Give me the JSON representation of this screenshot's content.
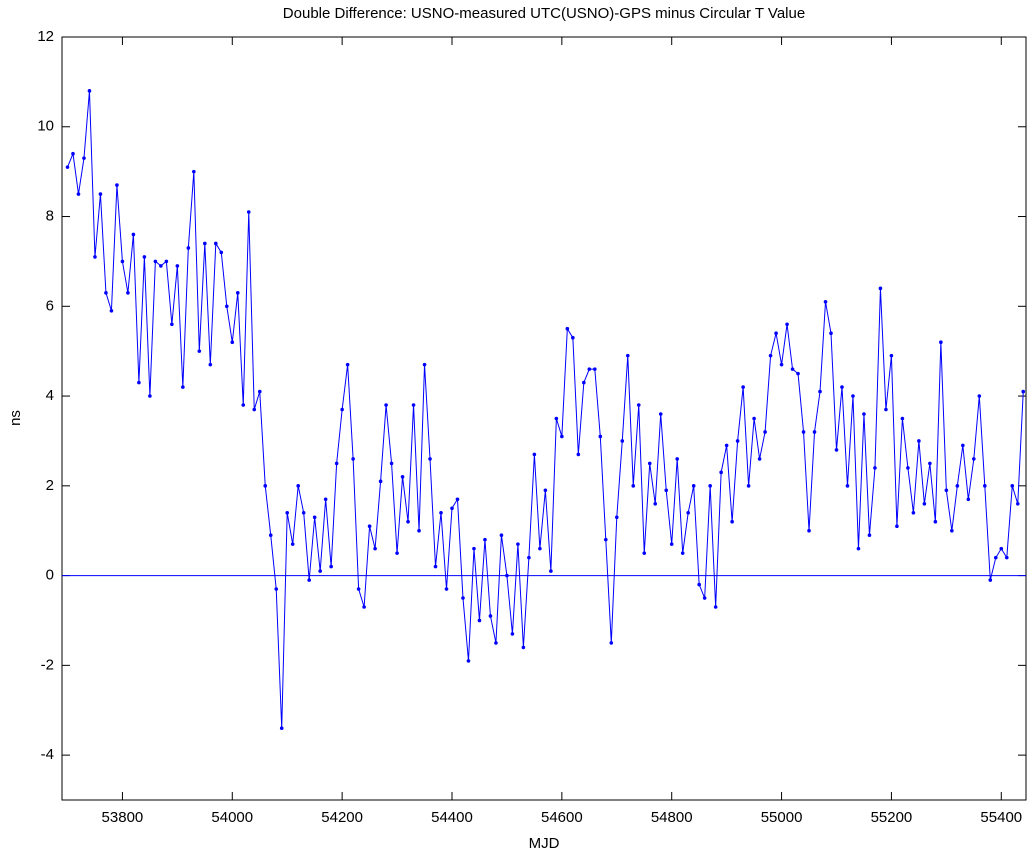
{
  "chart_data": {
    "type": "line",
    "title": "Double Difference: USNO-measured UTC(USNO)-GPS minus Circular T Value",
    "x_label": "MJD",
    "y_label": "ns",
    "x": [
      53700,
      53710,
      53720,
      53730,
      53740,
      53750,
      53760,
      53770,
      53780,
      53790,
      53800,
      53810,
      53820,
      53830,
      53840,
      53850,
      53860,
      53870,
      53880,
      53890,
      53900,
      53910,
      53920,
      53930,
      53940,
      53950,
      53960,
      53970,
      53980,
      53990,
      54000,
      54010,
      54020,
      54030,
      54040,
      54050,
      54060,
      54070,
      54080,
      54090,
      54100,
      54110,
      54120,
      54130,
      54140,
      54150,
      54160,
      54170,
      54180,
      54190,
      54200,
      54210,
      54220,
      54230,
      54240,
      54250,
      54260,
      54270,
      54280,
      54290,
      54300,
      54310,
      54320,
      54330,
      54340,
      54350,
      54360,
      54370,
      54380,
      54390,
      54400,
      54410,
      54420,
      54430,
      54440,
      54450,
      54460,
      54470,
      54480,
      54490,
      54500,
      54510,
      54520,
      54530,
      54540,
      54550,
      54560,
      54570,
      54580,
      54590,
      54600,
      54610,
      54620,
      54630,
      54640,
      54650,
      54660,
      54670,
      54680,
      54690,
      54700,
      54710,
      54720,
      54730,
      54740,
      54750,
      54760,
      54770,
      54780,
      54790,
      54800,
      54810,
      54820,
      54830,
      54840,
      54850,
      54860,
      54870,
      54880,
      54890,
      54900,
      54910,
      54920,
      54930,
      54940,
      54950,
      54960,
      54970,
      54980,
      54990,
      55000,
      55010,
      55020,
      55030,
      55040,
      55050,
      55060,
      55070,
      55080,
      55090,
      55100,
      55110,
      55120,
      55130,
      55140,
      55150,
      55160,
      55170,
      55180,
      55190,
      55200,
      55210,
      55220,
      55230,
      55240,
      55250,
      55260,
      55270,
      55280,
      55290,
      55300,
      55310,
      55320,
      55330,
      55340,
      55350,
      55360,
      55370,
      55380,
      55390,
      55400,
      55410,
      55420,
      55430,
      55440
    ],
    "series": [
      {
        "name": "USNO-measured UTC(USNO)-GPS minus Circular T",
        "color": "#0000ff",
        "values": [
          9.1,
          9.4,
          8.5,
          9.3,
          10.8,
          7.1,
          8.5,
          6.3,
          5.9,
          8.7,
          7.0,
          6.3,
          7.6,
          4.3,
          7.1,
          4.0,
          7.0,
          6.9,
          7.0,
          5.6,
          6.9,
          4.2,
          7.3,
          9.0,
          5.0,
          7.4,
          4.7,
          7.4,
          7.2,
          6.0,
          5.2,
          6.3,
          3.8,
          8.1,
          3.7,
          4.1,
          2.0,
          0.9,
          -0.3,
          -3.4,
          1.4,
          0.7,
          2.0,
          1.4,
          -0.1,
          1.3,
          0.1,
          1.7,
          0.2,
          2.5,
          3.7,
          4.7,
          2.6,
          -0.3,
          -0.7,
          1.1,
          0.6,
          2.1,
          3.8,
          2.5,
          0.5,
          2.2,
          1.2,
          3.8,
          1.0,
          4.7,
          2.6,
          0.2,
          1.4,
          -0.3,
          1.5,
          1.7,
          -0.5,
          -1.9,
          0.6,
          -1.0,
          0.8,
          -0.9,
          -1.5,
          0.9,
          0.0,
          -1.3,
          0.7,
          -1.6,
          0.4,
          2.7,
          0.6,
          1.9,
          0.1,
          3.5,
          3.1,
          5.5,
          5.3,
          2.7,
          4.3,
          4.6,
          4.6,
          3.1,
          0.8,
          -1.5,
          1.3,
          3.0,
          4.9,
          2.0,
          3.8,
          0.5,
          2.5,
          1.6,
          3.6,
          1.9,
          0.7,
          2.6,
          0.5,
          1.4,
          2.0,
          -0.2,
          -0.5,
          2.0,
          -0.7,
          2.3,
          2.9,
          1.2,
          3.0,
          4.2,
          2.0,
          3.5,
          2.6,
          3.2,
          4.9,
          5.4,
          4.7,
          5.6,
          4.6,
          4.5,
          3.2,
          1.0,
          3.2,
          4.1,
          6.1,
          5.4,
          2.8,
          4.2,
          2.0,
          4.0,
          0.6,
          3.6,
          0.9,
          2.4,
          6.4,
          3.7,
          4.9,
          1.1,
          3.5,
          2.4,
          1.4,
          3.0,
          1.6,
          2.5,
          1.2,
          5.2,
          1.9,
          1.0,
          2.0,
          2.9,
          1.7,
          2.6,
          4.0,
          2.0,
          -0.1,
          0.4,
          0.6,
          0.4,
          2.0,
          1.6,
          4.1
        ]
      }
    ],
    "hline": 0,
    "xlim": [
      53690,
      55445
    ],
    "ylim": [
      -5,
      12
    ],
    "xticks": [
      53800,
      54000,
      54200,
      54400,
      54600,
      54800,
      55000,
      55200,
      55400
    ],
    "yticks": [
      -4,
      -2,
      0,
      2,
      4,
      6,
      8,
      10,
      12
    ]
  }
}
